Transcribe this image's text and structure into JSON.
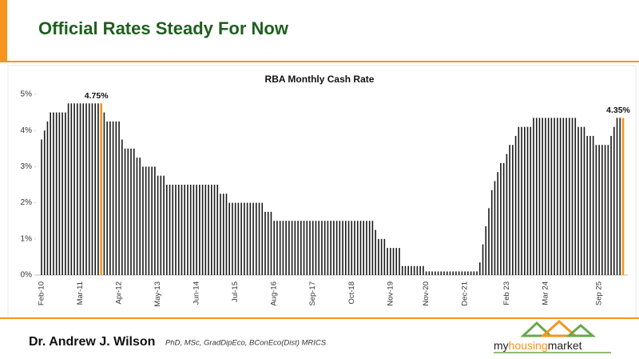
{
  "header": {
    "title": "Official Rates Steady For Now"
  },
  "chart_data": {
    "type": "bar",
    "title": "RBA Monthly Cash Rate",
    "categories": [
      "Feb-10",
      null,
      null,
      null,
      null,
      null,
      null,
      null,
      null,
      null,
      null,
      null,
      null,
      "Mar-11",
      null,
      null,
      null,
      null,
      null,
      null,
      null,
      null,
      null,
      null,
      null,
      null,
      "Apr-12",
      null,
      null,
      null,
      null,
      null,
      null,
      null,
      null,
      null,
      null,
      null,
      null,
      "May-13",
      null,
      null,
      null,
      null,
      null,
      null,
      null,
      null,
      null,
      null,
      null,
      null,
      "Jun-14",
      null,
      null,
      null,
      null,
      null,
      null,
      null,
      null,
      null,
      null,
      null,
      null,
      "Jul-15",
      null,
      null,
      null,
      null,
      null,
      null,
      null,
      null,
      null,
      null,
      null,
      null,
      "Aug-16",
      null,
      null,
      null,
      null,
      null,
      null,
      null,
      null,
      null,
      null,
      null,
      null,
      "Sep-17",
      null,
      null,
      null,
      null,
      null,
      null,
      null,
      null,
      null,
      null,
      null,
      null,
      "Oct-18",
      null,
      null,
      null,
      null,
      null,
      null,
      null,
      null,
      null,
      null,
      null,
      null,
      "Nov-19",
      null,
      null,
      null,
      null,
      null,
      null,
      null,
      null,
      null,
      null,
      null,
      "Nov-20",
      null,
      null,
      null,
      null,
      null,
      null,
      null,
      null,
      null,
      null,
      null,
      null,
      "Dec-21",
      null,
      null,
      null,
      null,
      null,
      null,
      null,
      null,
      null,
      null,
      null,
      null,
      null,
      "Feb 23",
      null,
      null,
      null,
      null,
      null,
      null,
      null,
      null,
      null,
      null,
      null,
      null,
      "Mar 24",
      null,
      null,
      null,
      null,
      null,
      null,
      null,
      null,
      null,
      null,
      null,
      null,
      null,
      null,
      null,
      null,
      null,
      "Sep 25",
      null,
      null,
      null,
      null,
      null,
      null,
      null,
      null
    ],
    "values": [
      3.75,
      4,
      4.25,
      4.5,
      4.5,
      4.5,
      4.5,
      4.5,
      4.5,
      4.75,
      4.75,
      4.75,
      4.75,
      4.75,
      4.75,
      4.75,
      4.75,
      4.75,
      4.75,
      4.75,
      4.75,
      4.5,
      4.25,
      4.25,
      4.25,
      4.25,
      4.25,
      3.75,
      3.5,
      3.5,
      3.5,
      3.5,
      3.25,
      3.25,
      3,
      3,
      3,
      3,
      3,
      2.75,
      2.75,
      2.75,
      2.5,
      2.5,
      2.5,
      2.5,
      2.5,
      2.5,
      2.5,
      2.5,
      2.5,
      2.5,
      2.5,
      2.5,
      2.5,
      2.5,
      2.5,
      2.5,
      2.5,
      2.5,
      2.25,
      2.25,
      2.25,
      2,
      2,
      2,
      2,
      2,
      2,
      2,
      2,
      2,
      2,
      2,
      2,
      1.75,
      1.75,
      1.75,
      1.5,
      1.5,
      1.5,
      1.5,
      1.5,
      1.5,
      1.5,
      1.5,
      1.5,
      1.5,
      1.5,
      1.5,
      1.5,
      1.5,
      1.5,
      1.5,
      1.5,
      1.5,
      1.5,
      1.5,
      1.5,
      1.5,
      1.5,
      1.5,
      1.5,
      1.5,
      1.5,
      1.5,
      1.5,
      1.5,
      1.5,
      1.5,
      1.5,
      1.5,
      1.25,
      1,
      1,
      1,
      0.75,
      0.75,
      0.75,
      0.75,
      0.75,
      0.25,
      0.25,
      0.25,
      0.25,
      0.25,
      0.25,
      0.25,
      0.25,
      0.1,
      0.1,
      0.1,
      0.1,
      0.1,
      0.1,
      0.1,
      0.1,
      0.1,
      0.1,
      0.1,
      0.1,
      0.1,
      0.1,
      0.1,
      0.1,
      0.1,
      0.1,
      0.35,
      0.85,
      1.35,
      1.85,
      2.35,
      2.6,
      2.85,
      3.1,
      3.1,
      3.35,
      3.6,
      3.6,
      3.85,
      4.1,
      4.1,
      4.1,
      4.1,
      4.1,
      4.35,
      4.35,
      4.35,
      4.35,
      4.35,
      4.35,
      4.35,
      4.35,
      4.35,
      4.35,
      4.35,
      4.35,
      4.35,
      4.35,
      4.35,
      4.1,
      4.1,
      4.1,
      3.85,
      3.85,
      3.85,
      3.6,
      3.6,
      3.6,
      3.6,
      3.6,
      3.85,
      4.1,
      4.35,
      4.35,
      4.35
    ],
    "value_labels": [
      null,
      null,
      null,
      null,
      null,
      null,
      null,
      null,
      null,
      null,
      null,
      null,
      null,
      null,
      null,
      null,
      null,
      null,
      null,
      null,
      "4.75%",
      null,
      null,
      null,
      null,
      null,
      null,
      null,
      null,
      null,
      null,
      null,
      null,
      null,
      null,
      null,
      null,
      null,
      null,
      null,
      null,
      null,
      null,
      null,
      null,
      null,
      null,
      null,
      null,
      null,
      null,
      null,
      null,
      null,
      null,
      null,
      null,
      null,
      null,
      null,
      null,
      null,
      null,
      null,
      null,
      null,
      null,
      null,
      null,
      null,
      null,
      null,
      null,
      null,
      null,
      null,
      null,
      null,
      null,
      null,
      null,
      null,
      null,
      null,
      null,
      null,
      null,
      null,
      null,
      null,
      null,
      null,
      null,
      null,
      null,
      null,
      null,
      null,
      null,
      null,
      null,
      null,
      null,
      null,
      null,
      null,
      null,
      null,
      null,
      null,
      null,
      null,
      null,
      null,
      null,
      null,
      null,
      null,
      null,
      null,
      null,
      null,
      null,
      null,
      null,
      null,
      null,
      null,
      null,
      null,
      null,
      null,
      null,
      null,
      null,
      null,
      null,
      null,
      null,
      null,
      null,
      null,
      null,
      null,
      null,
      null,
      null,
      null,
      null,
      null,
      null,
      null,
      null,
      null,
      null,
      null,
      null,
      null,
      null,
      null,
      null,
      null,
      null,
      null,
      null,
      null,
      null,
      null,
      null,
      null,
      null,
      null,
      null,
      null,
      null,
      null,
      null,
      null,
      null,
      null,
      null,
      null,
      null,
      null,
      null,
      null,
      null,
      null,
      null,
      null,
      null,
      null,
      null,
      null,
      null,
      "4.35%"
    ],
    "color": "#1a1a1a",
    "highlight_color": "#f7941d",
    "ylim": [
      0,
      5
    ],
    "yticks": [
      {
        "value": 0,
        "label": "0%"
      },
      {
        "value": 1,
        "label": "1%"
      },
      {
        "value": 2,
        "label": "2%"
      },
      {
        "value": 3,
        "label": "3%"
      },
      {
        "value": 4,
        "label": "4%"
      },
      {
        "value": 5,
        "label": "5%"
      }
    ]
  },
  "footer": {
    "author": "Dr. Andrew J. Wilson",
    "credentials": "PhD, MSc, GradDipEco, BConEco(Dist) MRICS",
    "logo_left": "my",
    "logo_mid": "housing",
    "logo_right": "market"
  }
}
